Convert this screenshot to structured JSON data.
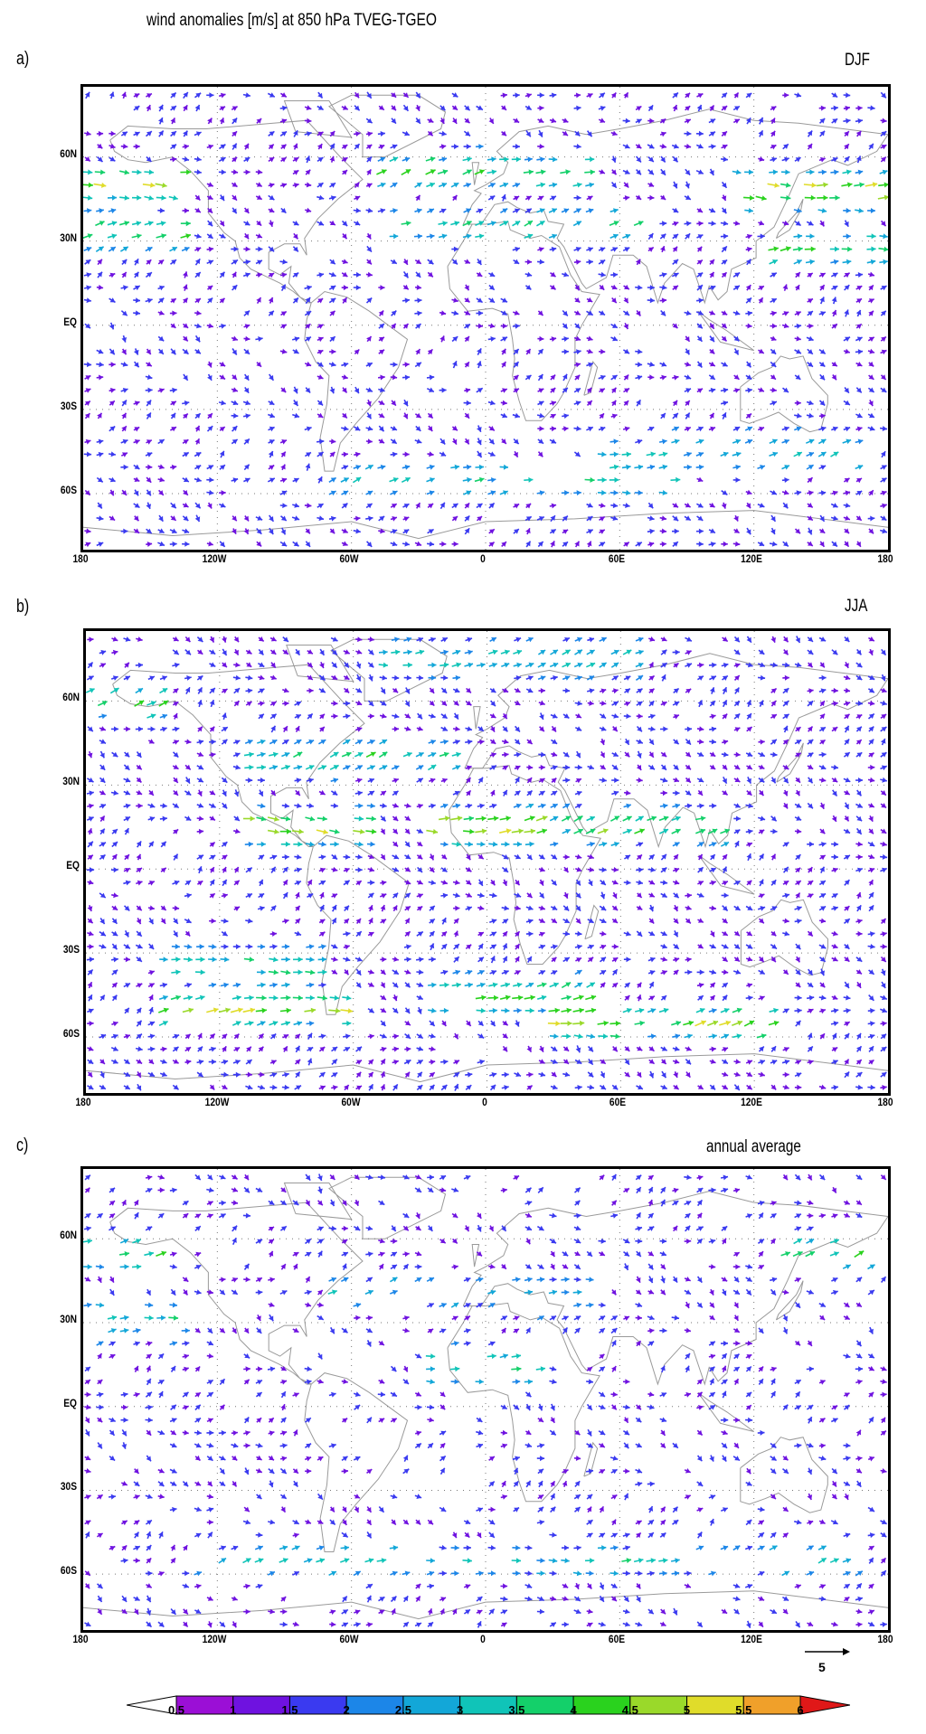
{
  "title": "wind anomalies [m/s] at 850 hPa TVEG-TGEO",
  "panels": [
    {
      "label": "a)",
      "season": "DJF"
    },
    {
      "label": "b)",
      "season": "JJA"
    },
    {
      "label": "c)",
      "season": "annual average"
    }
  ],
  "chart_data": {
    "type": "vector-field",
    "title": "wind anomalies [m/s] at 850 hPa TVEG-TGEO",
    "x_tick_labels": [
      "180",
      "120W",
      "60W",
      "0",
      "60E",
      "120E",
      "180"
    ],
    "y_tick_labels": [
      "60N",
      "30N",
      "EQ",
      "30S",
      "60S"
    ],
    "x_ticks_deg": [
      -180,
      -120,
      -60,
      0,
      60,
      120,
      180
    ],
    "y_ticks_deg": [
      60,
      30,
      0,
      -30,
      -60
    ],
    "reference_vector": "5",
    "colorbar": {
      "levels": [
        "0.5",
        "1",
        "1.5",
        "2",
        "2.5",
        "3",
        "3.5",
        "4",
        "4.5",
        "5",
        "5.5",
        "6"
      ],
      "colors": [
        "#9b0fd6",
        "#6f12e0",
        "#3a3af0",
        "#1c86e8",
        "#13a7d8",
        "#10c4b8",
        "#14d06a",
        "#2ad21e",
        "#9ad92a",
        "#e0dc2a",
        "#f0a02a",
        "#ee6a22",
        "#e01818"
      ]
    },
    "panels": [
      {
        "label": "a)",
        "season": "DJF"
      },
      {
        "label": "b)",
        "season": "JJA"
      },
      {
        "label": "c)",
        "season": "annual average"
      }
    ]
  }
}
